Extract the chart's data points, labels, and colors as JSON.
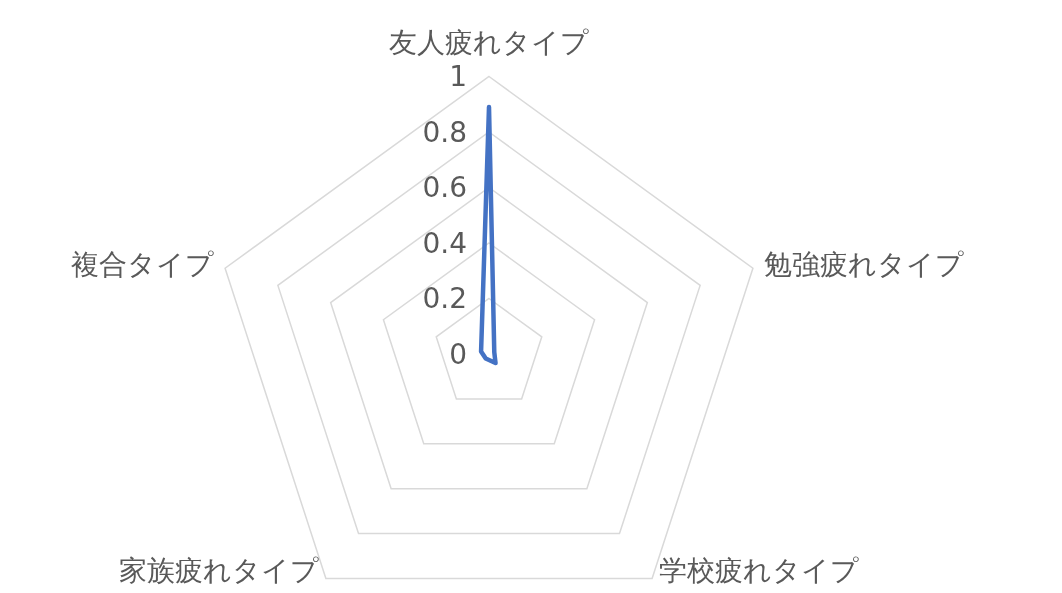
{
  "chart_data": {
    "type": "radar",
    "categories": [
      "友人疲れタイプ",
      "勉強疲れタイプ",
      "学校疲れタイプ",
      "家族疲れタイプ",
      "複合タイプ"
    ],
    "series": [
      {
        "color": "#4472c4",
        "values": [
          0.89,
          0.02,
          0.04,
          0.02,
          0.03
        ]
      }
    ],
    "ylim": [
      0,
      1
    ],
    "yticks": [
      0,
      0.2,
      0.4,
      0.6,
      0.8,
      1
    ],
    "grid": true,
    "marker": "none"
  }
}
